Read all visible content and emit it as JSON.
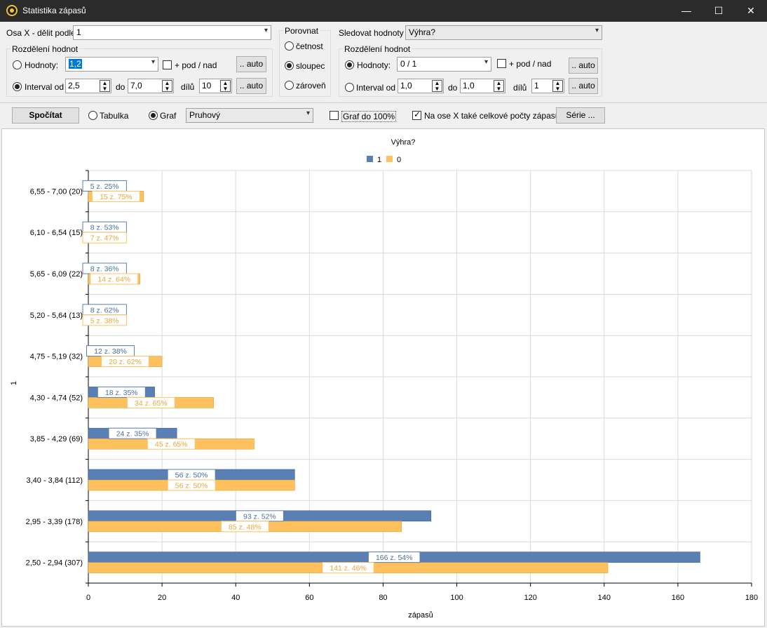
{
  "window": {
    "title": "Statistika zápasů",
    "controls": {
      "minimize": "—",
      "maximize": "☐",
      "close": "✕"
    }
  },
  "xaxis_panel": {
    "label": "Osa X - dělit podle",
    "value": "1",
    "group_title": "Rozdělení hodnot",
    "hodnoty_label": "Hodnoty:",
    "hodnoty_value": "1,2",
    "pod_nad_label": "+ pod / nad",
    "auto_label": ".. auto",
    "interval_label": "Interval od",
    "interval_from": "2,5",
    "do_label": "do",
    "interval_to": "7,0",
    "dilu_label": "dílů",
    "dilu_value": "10"
  },
  "compare_panel": {
    "title": "Porovnat",
    "options": [
      "četnost",
      "sloupec",
      "zároveň"
    ],
    "selected": "sloupec"
  },
  "track_panel": {
    "label": "Sledovat hodnoty",
    "value": "Výhra?",
    "group_title": "Rozdělení hodnot",
    "hodnoty_label": "Hodnoty:",
    "hodnoty_value": "0 / 1",
    "pod_nad_label": "+ pod / nad",
    "auto_label": ".. auto",
    "interval_label": "Interval od",
    "interval_from": "1,0",
    "do_label": "do",
    "interval_to": "1,0",
    "dilu_label": "dílů",
    "dilu_value": "1"
  },
  "toolbar": {
    "compute_label": "Spočítat",
    "table_label": "Tabulka",
    "graph_label": "Graf",
    "graph_type": "Pruhový",
    "graph100_label": "Graf do 100%",
    "totals_label": "Na ose X také celkové počty zápasů",
    "series_label": "Série ..."
  },
  "colors": {
    "series1": "#5a7fb5",
    "series0": "#ffc15e",
    "series1_text": "#4a6fa0",
    "series0_text": "#e8a63c"
  },
  "chart_data": {
    "type": "bar",
    "orientation": "horizontal",
    "title": "Výhra?",
    "xlabel": "zápasů",
    "ylabel": "1",
    "xlim": [
      0,
      180
    ],
    "xticks": [
      0,
      20,
      40,
      60,
      80,
      100,
      120,
      140,
      160,
      180
    ],
    "grid": true,
    "legend_position": "top",
    "categories": [
      "6,55 - 7,00 (20)",
      "6,10 - 6,54 (15)",
      "5,65 - 6,09 (22)",
      "5,20 - 5,64 (13)",
      "4,75 - 5,19 (32)",
      "4,30 - 4,74 (52)",
      "3,85 - 4,29 (69)",
      "3,40 - 3,84 (112)",
      "2,95 - 3,39 (178)",
      "2,50 - 2,94 (307)"
    ],
    "series": [
      {
        "name": "1",
        "values": [
          5,
          8,
          8,
          8,
          12,
          18,
          24,
          56,
          93,
          166
        ],
        "labels": [
          "5 z.  25%",
          "8 z.  53%",
          "8 z.  36%",
          "8 z.  62%",
          "12 z.  38%",
          "18 z.  35%",
          "24 z.  35%",
          "56 z.  50%",
          "93 z.  52%",
          "166 z.  54%"
        ]
      },
      {
        "name": "0",
        "values": [
          15,
          7,
          14,
          5,
          20,
          34,
          45,
          56,
          85,
          141
        ],
        "labels": [
          "15 z.  75%",
          "7 z.  47%",
          "14 z.  64%",
          "5 z.  38%",
          "20 z.  62%",
          "34 z.  65%",
          "45 z.  65%",
          "56 z.  50%",
          "85 z.  48%",
          "141 z.  46%"
        ]
      }
    ]
  }
}
